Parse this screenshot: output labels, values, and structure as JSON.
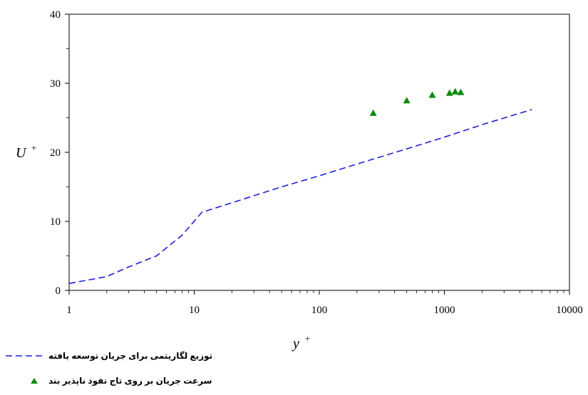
{
  "chart_data": {
    "type": "line",
    "x_scale": "log",
    "xlim": [
      1,
      10000
    ],
    "ylim": [
      0,
      40
    ],
    "x_ticks": [
      "1",
      "10",
      "100",
      "1000",
      "10000"
    ],
    "y_ticks": [
      "0",
      "10",
      "20",
      "30",
      "40"
    ],
    "xlabel": "y",
    "xlabel_sup": "+",
    "ylabel": "U",
    "ylabel_sup": "+",
    "grid": false,
    "legend_position": "bottom-left",
    "series": [
      {
        "name": "توزیع لگاریتمی برای جریان توسعه یافته",
        "style": "dashed-line",
        "color": "#1f1fd6",
        "points": [
          [
            1,
            1.0
          ],
          [
            2,
            2.0
          ],
          [
            3,
            3.4
          ],
          [
            5,
            5.0
          ],
          [
            8,
            8.0
          ],
          [
            11.5,
            11.3
          ],
          [
            50,
            15.0
          ],
          [
            100,
            16.6
          ],
          [
            200,
            18.3
          ],
          [
            500,
            20.5
          ],
          [
            1000,
            22.2
          ],
          [
            2000,
            24.0
          ],
          [
            5000,
            26.2
          ]
        ]
      },
      {
        "name": "سرعت جریان بر روی تاج نفوذ ناپذیر بند",
        "style": "triangle-markers",
        "color": "#0a8a0a",
        "points": [
          [
            270,
            25.7
          ],
          [
            500,
            27.5
          ],
          [
            800,
            28.3
          ],
          [
            1100,
            28.6
          ],
          [
            1220,
            28.8
          ],
          [
            1350,
            28.7
          ]
        ]
      }
    ]
  }
}
